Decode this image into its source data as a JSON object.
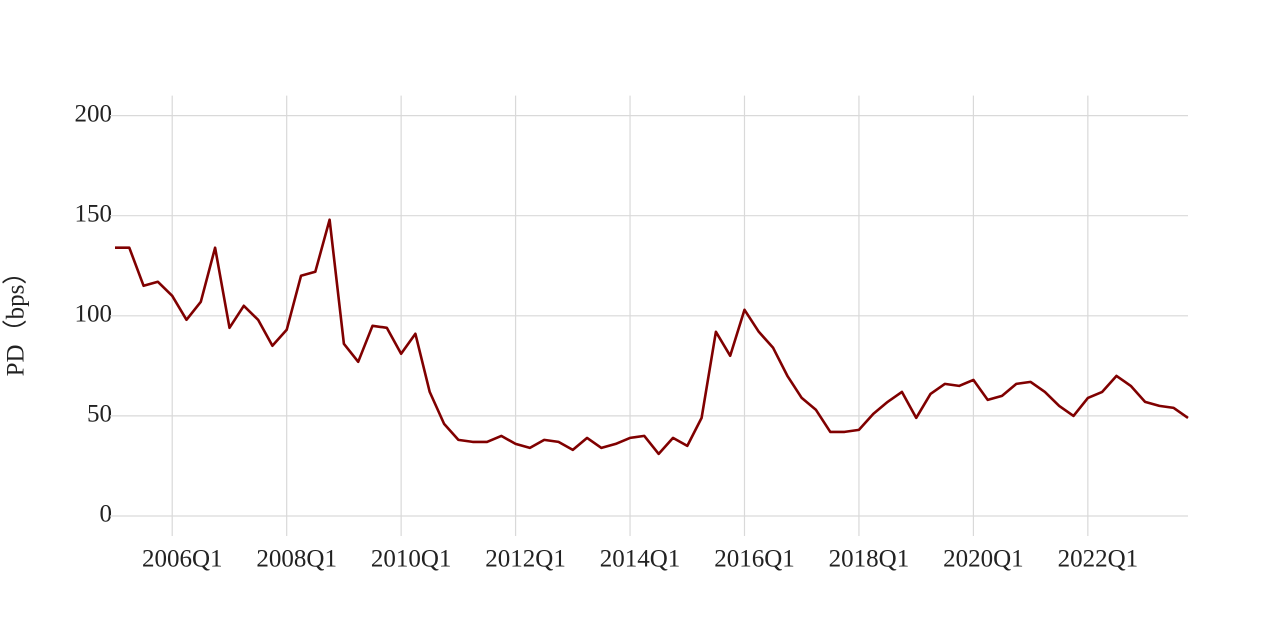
{
  "chart_data": {
    "type": "line",
    "y_label": "PD（bps）",
    "categories": [
      null,
      null,
      null,
      null,
      "2006Q1",
      null,
      null,
      null,
      null,
      null,
      null,
      null,
      "2008Q1",
      null,
      null,
      null,
      null,
      null,
      null,
      null,
      "2010Q1",
      null,
      null,
      null,
      null,
      null,
      null,
      null,
      "2012Q1",
      null,
      null,
      null,
      null,
      null,
      null,
      null,
      "2014Q1",
      null,
      null,
      null,
      null,
      null,
      null,
      null,
      "2016Q1",
      null,
      null,
      null,
      null,
      null,
      null,
      null,
      "2018Q1",
      null,
      null,
      null,
      null,
      null,
      null,
      null,
      "2020Q1",
      null,
      null,
      null,
      null,
      null,
      null,
      null,
      "2022Q1",
      null,
      null,
      null,
      null,
      null,
      null,
      null
    ],
    "series": [
      {
        "name": "PD",
        "color": "#800000",
        "values": [
          134,
          134,
          115,
          117,
          110,
          98,
          107,
          134,
          94,
          105,
          98,
          85,
          93,
          120,
          122,
          148,
          86,
          77,
          95,
          94,
          81,
          91,
          62,
          46,
          38,
          37,
          37,
          40,
          36,
          34,
          38,
          37,
          33,
          39,
          34,
          36,
          39,
          40,
          31,
          39,
          35,
          49,
          92,
          80,
          103,
          92,
          84,
          70,
          59,
          53,
          42,
          42,
          43,
          51,
          57,
          62,
          49,
          61,
          66,
          65,
          68,
          58,
          60,
          66,
          67,
          62,
          55,
          50,
          59,
          62,
          70,
          65,
          57,
          55,
          54,
          49
        ]
      }
    ],
    "ylim": [
      -10,
      210
    ],
    "yticks": [
      0,
      50,
      100,
      150,
      200
    ],
    "grid": true
  }
}
